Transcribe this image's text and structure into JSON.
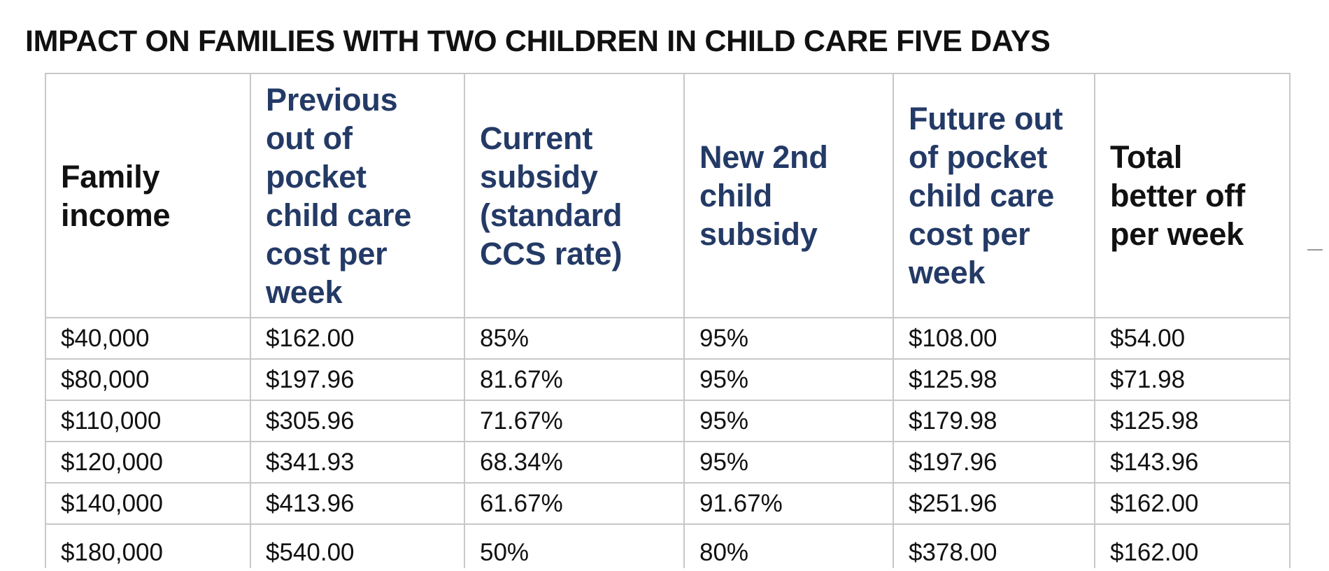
{
  "title": "IMPACT ON FAMILIES WITH TWO CHILDREN IN CHILD CARE FIVE DAYS",
  "table": {
    "headers": [
      {
        "lines": [
          "Family",
          "income"
        ]
      },
      {
        "lines": [
          "Previous",
          "out of",
          "pocket",
          "child care",
          "cost per",
          "week"
        ]
      },
      {
        "lines": [
          "Current",
          "subsidy",
          "(standard",
          "CCS rate)"
        ]
      },
      {
        "lines": [
          "New 2nd",
          "child",
          "subsidy"
        ]
      },
      {
        "lines": [
          "Future out",
          "of pocket",
          "child care",
          "cost per",
          "week"
        ]
      },
      {
        "lines": [
          "Total",
          "better off",
          "per week"
        ]
      }
    ],
    "rows": [
      [
        "$40,000",
        "$162.00",
        "85%",
        "95%",
        "$108.00",
        "$54.00"
      ],
      [
        "$80,000",
        "$197.96",
        "81.67%",
        "95%",
        "$125.98",
        "$71.98"
      ],
      [
        "$110,000",
        "$305.96",
        "71.67%",
        "95%",
        "$179.98",
        "$125.98"
      ],
      [
        "$120,000",
        "$341.93",
        "68.34%",
        "95%",
        "$197.96",
        "$143.96"
      ],
      [
        "$140,000",
        "$413.96",
        "61.67%",
        "91.67%",
        "$251.96",
        "$162.00"
      ],
      [
        "$180,000",
        "$540.00",
        "50%",
        "80%",
        "$378.00",
        "$162.00"
      ]
    ]
  },
  "colors": {
    "header_text_dark": "#111111",
    "header_text_navy": "#243a66",
    "grid_line": "#c8c8c8"
  }
}
